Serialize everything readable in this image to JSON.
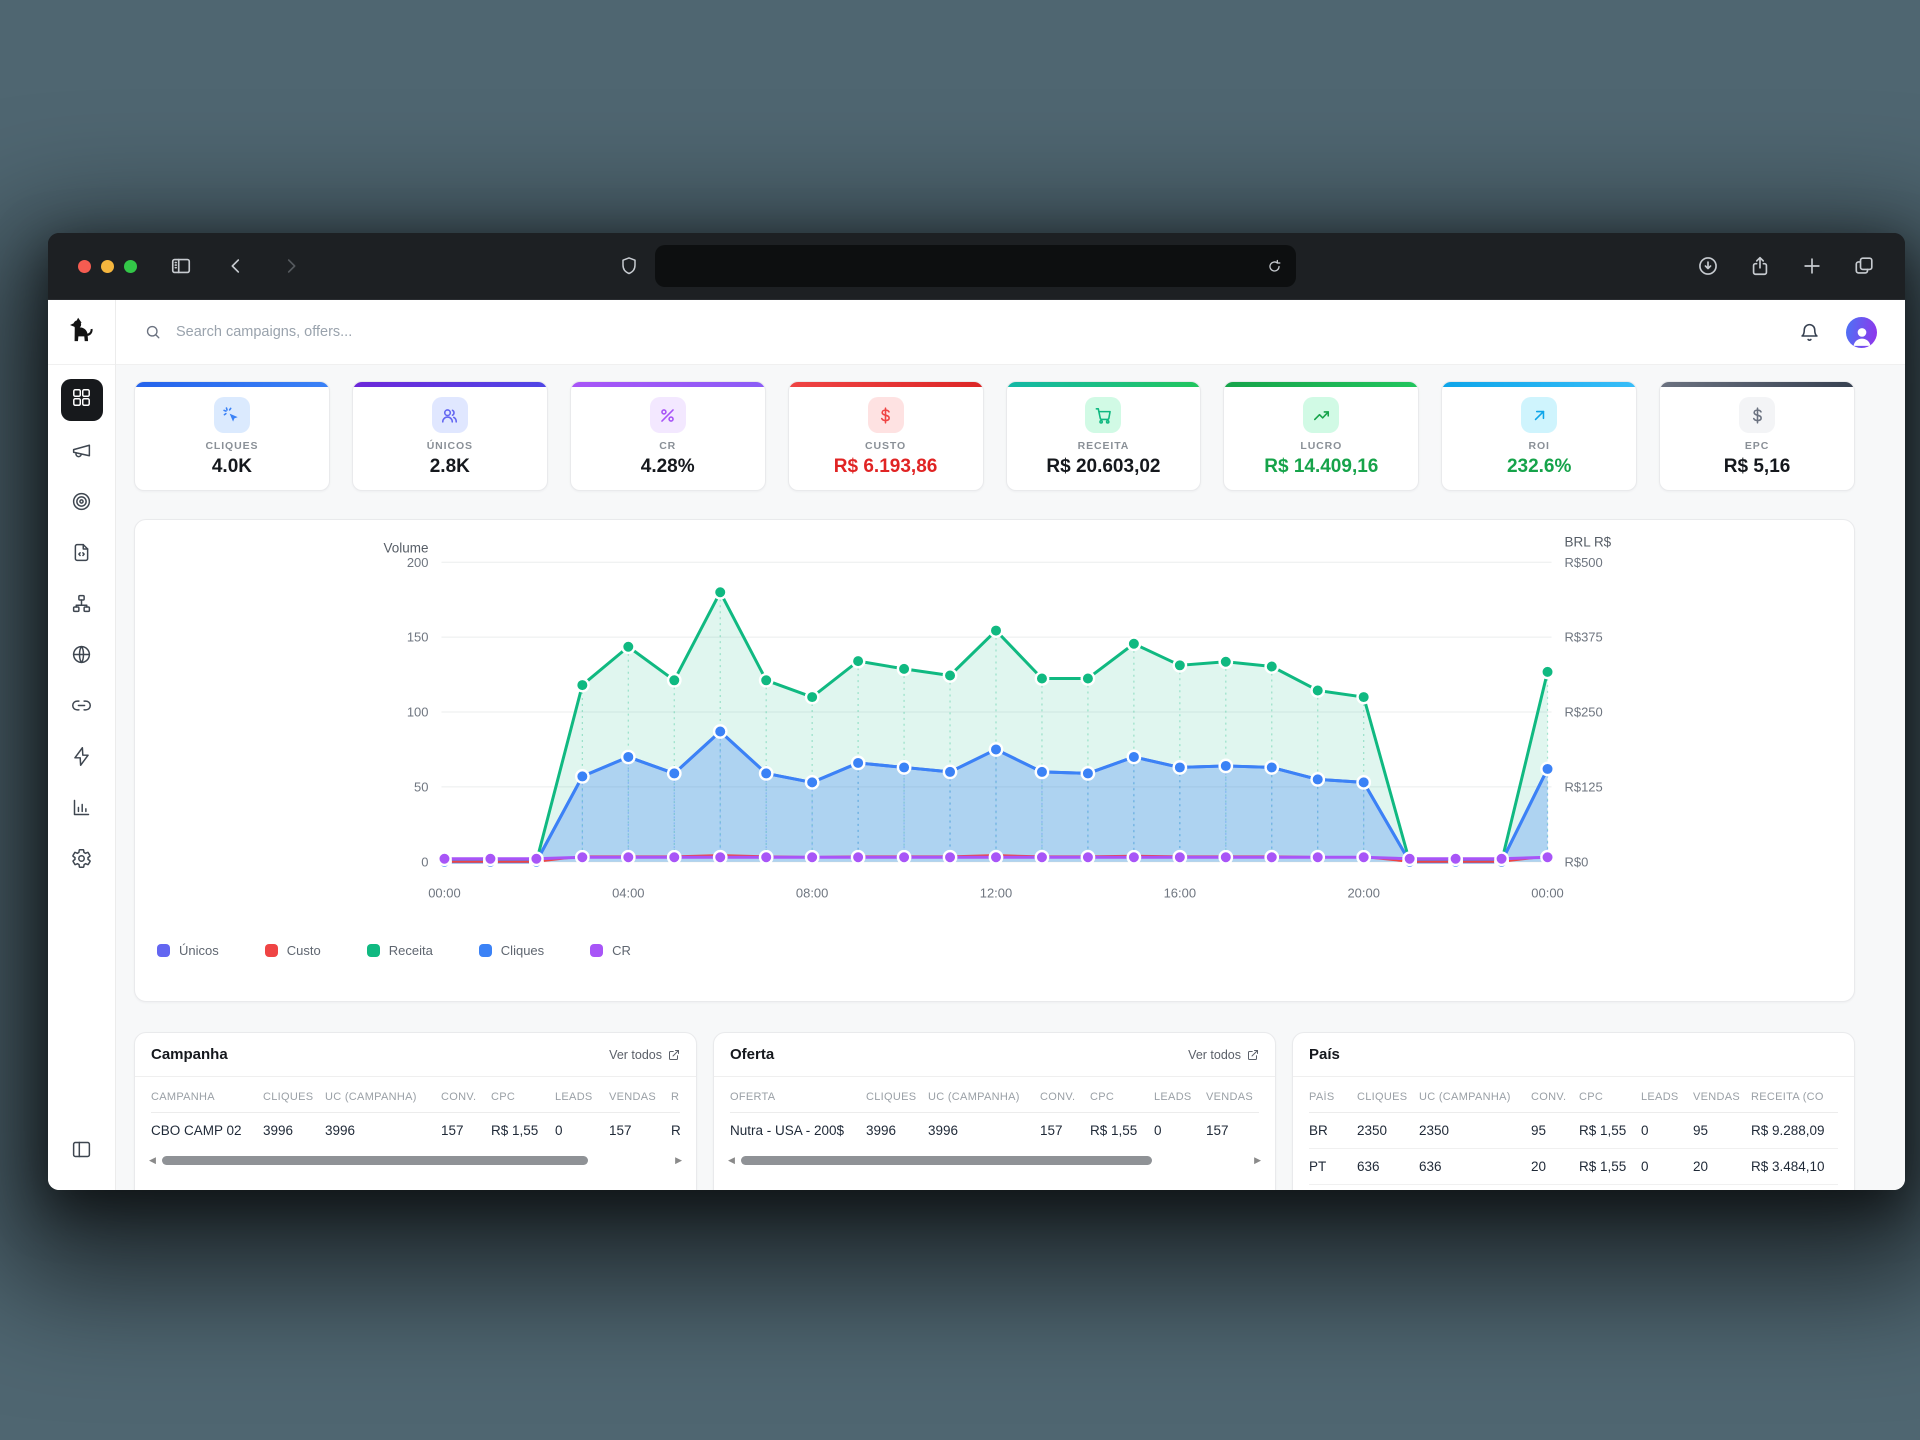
{
  "browser": {
    "traffic_lights": [
      {
        "name": "close",
        "color": "#f55c51"
      },
      {
        "name": "minimize",
        "color": "#f5b63e"
      },
      {
        "name": "zoom",
        "color": "#33c748"
      }
    ],
    "left_icons": [
      "sidebar-toggle",
      "back",
      "forward"
    ],
    "address": {
      "value": "",
      "shield_icon": "shield",
      "reload_icon": "reload"
    },
    "right_icons": [
      "download",
      "share",
      "new-tab",
      "tab-overview"
    ]
  },
  "sidebar": {
    "logo_icon": "dog-logo",
    "items": [
      {
        "icon": "layout-grid",
        "active": true
      },
      {
        "icon": "megaphone",
        "active": false
      },
      {
        "icon": "target",
        "active": false
      },
      {
        "icon": "file-code",
        "active": false
      },
      {
        "icon": "sitemap",
        "active": false
      },
      {
        "icon": "globe",
        "active": false
      },
      {
        "icon": "link",
        "active": false
      },
      {
        "icon": "zap",
        "active": false
      },
      {
        "icon": "bar-chart",
        "active": false
      },
      {
        "icon": "gear",
        "active": false
      }
    ],
    "footer_icon": "panel-left"
  },
  "header": {
    "search": {
      "icon": "search",
      "placeholder": "Search campaigns, offers..."
    },
    "actions": [
      {
        "icon": "bell"
      },
      {
        "icon": "avatar"
      }
    ]
  },
  "kpis": [
    {
      "label": "CLIQUES",
      "value": "4.0K",
      "icon": "cursor-click",
      "accent": "linear-gradient(90deg,#2563eb,#3b82f6)",
      "tile_bg": "#dbeafe",
      "icon_color": "#3b82f6",
      "value_color": "#15181d"
    },
    {
      "label": "ÚNICOS",
      "value": "2.8K",
      "icon": "users",
      "accent": "linear-gradient(90deg,#6d28d9,#4f46e5)",
      "tile_bg": "#e0e7ff",
      "icon_color": "#6366f1",
      "value_color": "#15181d"
    },
    {
      "label": "CR",
      "value": "4.28%",
      "icon": "percent",
      "accent": "linear-gradient(90deg,#a855f7,#8b5cf6)",
      "tile_bg": "#f3e8ff",
      "icon_color": "#a855f7",
      "value_color": "#15181d"
    },
    {
      "label": "CUSTO",
      "value": "R$ 6.193,86",
      "icon": "dollar",
      "accent": "linear-gradient(90deg,#ef4444,#dc2626)",
      "tile_bg": "#fee2e2",
      "icon_color": "#ef4444",
      "value_color": "#e02424"
    },
    {
      "label": "RECEITA",
      "value": "R$ 20.603,02",
      "icon": "cart",
      "accent": "linear-gradient(90deg,#14b8a6,#22c55e)",
      "tile_bg": "#d1fae5",
      "icon_color": "#10b981",
      "value_color": "#15181d"
    },
    {
      "label": "LUCRO",
      "value": "R$ 14.409,16",
      "icon": "trending-up",
      "accent": "linear-gradient(90deg,#16a34a,#22c55e)",
      "tile_bg": "#d1fae5",
      "icon_color": "#16a34a",
      "value_color": "#16a34a"
    },
    {
      "label": "ROI",
      "value": "232.6%",
      "icon": "arrow-up-right",
      "accent": "linear-gradient(90deg,#0ea5e9,#38bdf8)",
      "tile_bg": "#cff4fd",
      "icon_color": "#0ea5e9",
      "value_color": "#16a34a"
    },
    {
      "label": "EPC",
      "value": "R$ 5,16",
      "icon": "dollar",
      "accent": "linear-gradient(90deg,#6b7280,#374151)",
      "tile_bg": "#f3f4f6",
      "icon_color": "#6b7280",
      "value_color": "#15181d"
    }
  ],
  "chart_data": {
    "type": "line",
    "axes": {
      "left": {
        "label": "Volume",
        "max": 200,
        "ticks": [
          0,
          50,
          100,
          150,
          200
        ]
      },
      "right": {
        "label": "BRL R$",
        "max": 500,
        "ticks": [
          "R$0",
          "R$125",
          "R$250",
          "R$375",
          "R$500"
        ]
      }
    },
    "x_ticks": [
      {
        "hour": 0,
        "label": "00:00"
      },
      {
        "hour": 4,
        "label": "04:00"
      },
      {
        "hour": 8,
        "label": "08:00"
      },
      {
        "hour": 12,
        "label": "12:00"
      },
      {
        "hour": 16,
        "label": "16:00"
      },
      {
        "hour": 20,
        "label": "20:00"
      },
      {
        "hour": 24,
        "label": "00:00"
      }
    ],
    "grid": true,
    "legend_position": "bottom-left",
    "series": [
      {
        "name": "Únicos",
        "color": "#6366f1",
        "axis": "left",
        "values": [
          0,
          0,
          0,
          57,
          70,
          59,
          87,
          59,
          53,
          66,
          63,
          60,
          75,
          60,
          59,
          70,
          63,
          64,
          63,
          55,
          53,
          0,
          0,
          0,
          62
        ]
      },
      {
        "name": "Custo",
        "color": "#ef4444",
        "axis": "right",
        "values": [
          0,
          0,
          0,
          9,
          9,
          9,
          11,
          9,
          8,
          9,
          9,
          9,
          11,
          9,
          9,
          10,
          9,
          9,
          9,
          8,
          8,
          0,
          0,
          0,
          9
        ]
      },
      {
        "name": "Receita",
        "color": "#10b981",
        "axis": "right",
        "fill_opacity": 0.13,
        "markers": true,
        "values": [
          0,
          0,
          0,
          295,
          359,
          303,
          450,
          303,
          275,
          335,
          322,
          311,
          386,
          306,
          306,
          364,
          328,
          334,
          326,
          286,
          275,
          0,
          0,
          0,
          317
        ]
      },
      {
        "name": "Cliques",
        "color": "#3b82f6",
        "axis": "left",
        "fill_opacity": 0.3,
        "markers": true,
        "values": [
          0,
          0,
          0,
          57,
          70,
          59,
          87,
          59,
          53,
          66,
          63,
          60,
          75,
          60,
          59,
          70,
          63,
          64,
          63,
          55,
          53,
          0,
          0,
          0,
          62
        ]
      },
      {
        "name": "CR",
        "color": "#a855f7",
        "axis": "left",
        "markers": true,
        "values": [
          2,
          2,
          2,
          3,
          3,
          3,
          3,
          3,
          3,
          3,
          3,
          3,
          3,
          3,
          3,
          3,
          3,
          3,
          3,
          3,
          3,
          2,
          2,
          2,
          3
        ]
      }
    ]
  },
  "tables": [
    {
      "title": "Campanha",
      "link_label": "Ver todos",
      "scrollbar": true,
      "thumb": 0.84,
      "columns": [
        "CAMPANHA",
        "CLIQUES",
        "UC (CAMPANHA)",
        "CONV.",
        "CPC",
        "LEADS",
        "VENDAS",
        "R"
      ],
      "rows": [
        [
          "CBO CAMP 02",
          "3996",
          "3996",
          "157",
          "R$ 1,55",
          "0",
          "157",
          "R"
        ]
      ]
    },
    {
      "title": "Oferta",
      "link_label": "Ver todos",
      "scrollbar": true,
      "thumb": 0.81,
      "columns": [
        "OFERTA",
        "CLIQUES",
        "UC (CAMPANHA)",
        "CONV.",
        "CPC",
        "LEADS",
        "VENDAS"
      ],
      "rows": [
        [
          "Nutra - USA - 200$",
          "3996",
          "3996",
          "157",
          "R$ 1,55",
          "0",
          "157"
        ]
      ]
    },
    {
      "title": "País",
      "link_label": null,
      "scrollbar": false,
      "thumb": 0,
      "columns": [
        "PAÍS",
        "CLIQUES",
        "UC (CAMPANHA)",
        "CONV.",
        "CPC",
        "LEADS",
        "VENDAS",
        "RECEITA (CO"
      ],
      "rows": [
        [
          "BR",
          "2350",
          "2350",
          "95",
          "R$ 1,55",
          "0",
          "95",
          "R$ 9.288,09"
        ],
        [
          "PT",
          "636",
          "636",
          "20",
          "R$ 1,55",
          "0",
          "20",
          "R$ 3.484,10"
        ]
      ]
    }
  ]
}
